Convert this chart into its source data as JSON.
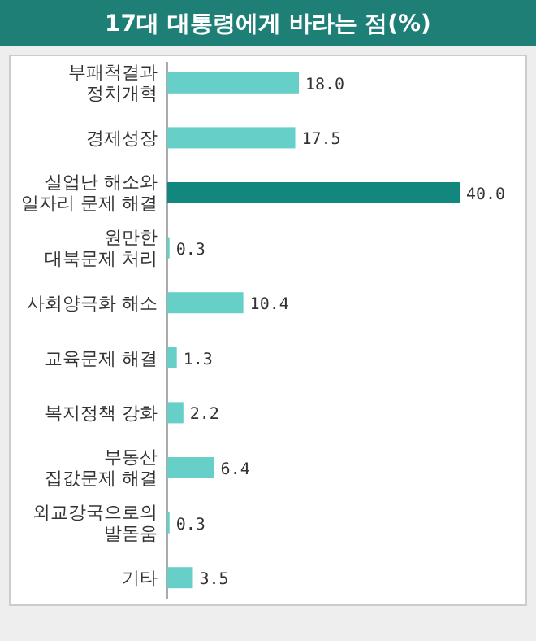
{
  "chart_data": {
    "type": "bar",
    "orientation": "horizontal",
    "title": "17대 대통령에게 바라는 점(%)",
    "categories": [
      "부패척결과 정치개혁",
      "경제성장",
      "실업난 해소와 일자리 문제 해결",
      "원만한 대북문제 처리",
      "사회양극화 해소",
      "교육문제 해결",
      "복지정책 강화",
      "부동산 집값문제 해결",
      "외교강국으로의 발돋움",
      "기타"
    ],
    "values": [
      18.0,
      17.5,
      40.0,
      0.3,
      10.4,
      1.3,
      2.2,
      6.4,
      0.3,
      3.5
    ],
    "value_labels": [
      "18.0",
      "17.5",
      "40.0",
      "0.3",
      "10.4",
      "1.3",
      "2.2",
      "6.4",
      "0.3",
      "3.5"
    ],
    "colors": [
      "#66cfc8",
      "#66cfc8",
      "#11877d",
      "#66cfc8",
      "#66cfc8",
      "#66cfc8",
      "#66cfc8",
      "#66cfc8",
      "#66cfc8",
      "#66cfc8"
    ]
  }
}
